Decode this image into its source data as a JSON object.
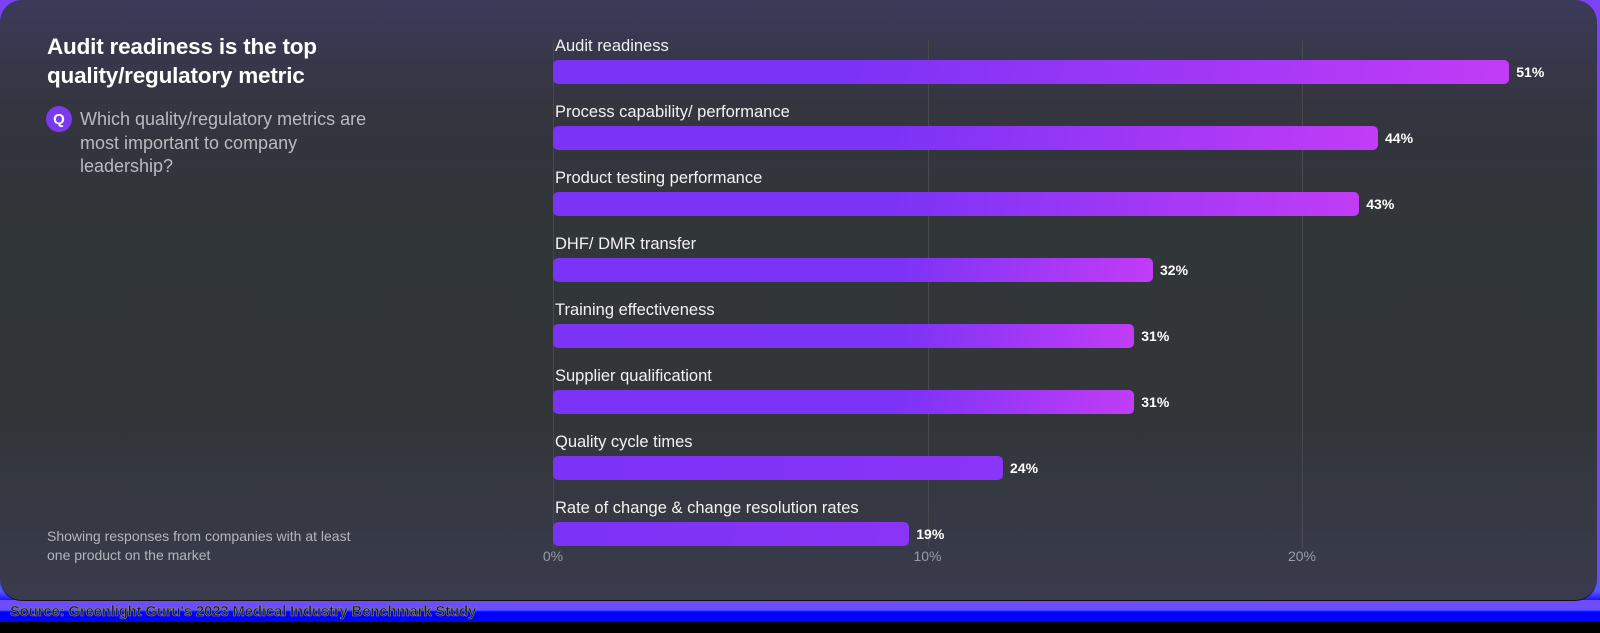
{
  "header": {
    "title": "Audit readiness is the top quality/regulatory metric",
    "question_badge": "Q",
    "question": "Which quality/regulatory metrics are most important to company leadership?"
  },
  "footnote": "Showing responses from companies with at least one product on the market",
  "source": "Source: Greenlight Guru's 2023 Medical Industry Benchmark Study",
  "colors": {
    "bar_base": "#7b33f6",
    "bar_highlight": "#c23cf6",
    "q_badge": "#7c3aed",
    "card_bg": "#313638",
    "gridline": "#464a4e"
  },
  "chart_data": {
    "type": "bar",
    "orientation": "horizontal",
    "title": "Audit readiness is the top quality/regulatory metric",
    "subtitle": "Which quality/regulatory metrics are most important to company leadership?",
    "categories": [
      "Audit readiness",
      "Process capability/ performance",
      "Product testing performance",
      "DHF/ DMR transfer",
      "Training effectiveness",
      "Supplier qualificationt",
      "Quality cycle times",
      "Rate of change & change resolution rates"
    ],
    "values": [
      51,
      44,
      43,
      32,
      31,
      31,
      24,
      19
    ],
    "value_labels": [
      "51%",
      "44%",
      "43%",
      "32%",
      "31%",
      "31%",
      "24%",
      "19%"
    ],
    "xlabel": "",
    "ylabel": "",
    "x_ticks": [
      "0%",
      "10%",
      "20%"
    ],
    "grid": true,
    "legend": null
  }
}
